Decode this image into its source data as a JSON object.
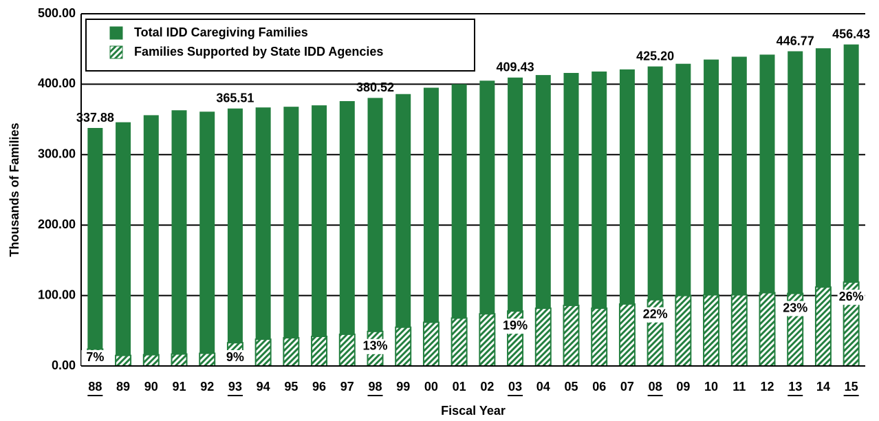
{
  "chart_data": {
    "type": "bar",
    "categories": [
      "88",
      "89",
      "90",
      "91",
      "92",
      "93",
      "94",
      "95",
      "96",
      "97",
      "98",
      "99",
      "00",
      "01",
      "02",
      "03",
      "04",
      "05",
      "06",
      "07",
      "08",
      "09",
      "10",
      "11",
      "12",
      "13",
      "14",
      "15"
    ],
    "series": [
      {
        "name": "Total IDD Caregiving Families",
        "color": "#237f3f",
        "values": [
          337.88,
          346,
          356,
          363,
          361,
          365.51,
          367,
          368,
          370,
          376,
          380.52,
          386,
          395,
          400,
          405,
          409.43,
          413,
          416,
          418,
          421,
          425.2,
          429,
          435,
          439,
          442,
          446.77,
          451,
          456.43
        ],
        "value_labels": [
          "337.88",
          null,
          null,
          null,
          null,
          "365.51",
          null,
          null,
          null,
          null,
          "380.52",
          null,
          null,
          null,
          null,
          "409.43",
          null,
          null,
          null,
          null,
          "425.20",
          null,
          null,
          null,
          null,
          "446.77",
          null,
          "456.43"
        ]
      },
      {
        "name": "Families Supported by State IDD Agencies",
        "color": "#237f3f",
        "pattern": "hatched",
        "values": [
          24,
          15,
          16,
          17,
          18,
          33,
          38,
          40,
          42,
          45,
          49,
          55,
          62,
          68,
          74,
          78,
          82,
          86,
          82,
          88,
          94,
          100,
          101,
          101,
          104,
          103,
          112,
          119
        ],
        "percent_labels": [
          "7%",
          null,
          null,
          null,
          null,
          "9%",
          null,
          null,
          null,
          null,
          "13%",
          null,
          null,
          null,
          null,
          "19%",
          null,
          null,
          null,
          null,
          "22%",
          null,
          null,
          null,
          null,
          "23%",
          null,
          "26%"
        ]
      }
    ],
    "x_label": "Fiscal Year",
    "y_label": "Thousands of Families",
    "ylim": [
      0,
      500
    ],
    "yticks": [
      {
        "value": 0,
        "label": "0.00"
      },
      {
        "value": 100,
        "label": "100.00"
      },
      {
        "value": 200,
        "label": "200.00"
      },
      {
        "value": 300,
        "label": "300.00"
      },
      {
        "value": 400,
        "label": "400.00"
      },
      {
        "value": 500,
        "label": "500.00"
      }
    ],
    "grid": true,
    "legend": "upper left"
  }
}
